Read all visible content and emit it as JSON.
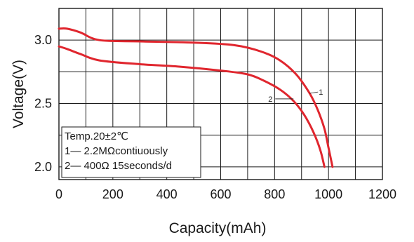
{
  "chart_data": {
    "type": "line",
    "title": "",
    "xlabel": "Capacity(mAh)",
    "ylabel": "Voltage(V)",
    "xlim": [
      0,
      1200
    ],
    "ylim": [
      1.9,
      3.25
    ],
    "grid": true,
    "x_ticks": [
      0,
      200,
      400,
      600,
      800,
      1000,
      1200
    ],
    "x_tick_labels": [
      "0",
      "200",
      "400",
      "600",
      "800",
      "1000",
      "1200"
    ],
    "y_ticks": [
      2.0,
      2.5,
      3.0
    ],
    "y_tick_labels": [
      "2.0",
      "2.5",
      "3.0"
    ],
    "series": [
      {
        "name": "1",
        "color": "#e0262e",
        "x": [
          0,
          30,
          80,
          150,
          300,
          500,
          650,
          750,
          820,
          880,
          930,
          960,
          985,
          1000,
          1015
        ],
        "y": [
          3.09,
          3.09,
          3.06,
          3.0,
          2.99,
          2.98,
          2.96,
          2.91,
          2.84,
          2.73,
          2.58,
          2.45,
          2.3,
          2.15,
          2.0
        ]
      },
      {
        "name": "2",
        "color": "#e0262e",
        "x": [
          0,
          30,
          80,
          150,
          300,
          450,
          600,
          700,
          760,
          820,
          870,
          910,
          945,
          970,
          985
        ],
        "y": [
          2.95,
          2.93,
          2.89,
          2.84,
          2.81,
          2.79,
          2.76,
          2.73,
          2.68,
          2.61,
          2.52,
          2.41,
          2.27,
          2.13,
          2.0
        ]
      }
    ],
    "curve_labels": [
      "1",
      "2"
    ],
    "legend": {
      "placement": "bottom-left",
      "lines": [
        "Temp.20±2℃",
        "1— 2.2MΩcontiuously",
        "2— 400Ω 15seconds/d"
      ]
    }
  }
}
